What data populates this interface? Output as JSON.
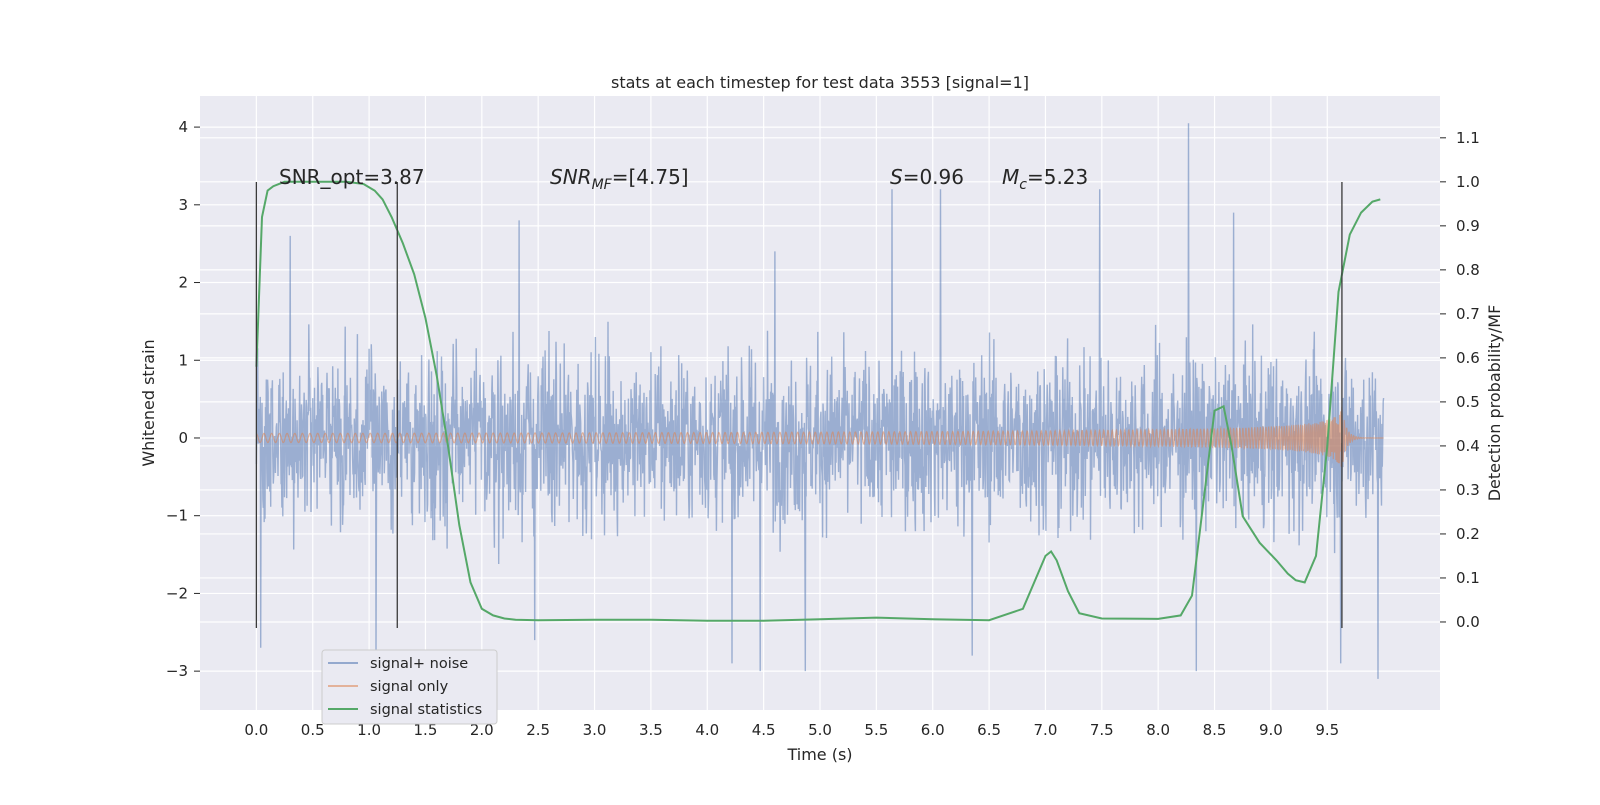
{
  "chart_data": {
    "type": "line",
    "title": "stats at each timestep for test data 3553 [signal=1]",
    "xlabel": "Time (s)",
    "ylabel_left": "Whitened strain",
    "ylabel_right": "Detection probability/MF",
    "xlim": [
      -0.5,
      10.5
    ],
    "ylim_left": [
      -3.5,
      4.4
    ],
    "ylim_right": [
      -0.2,
      1.195
    ],
    "xticks": [
      "0.0",
      "0.5",
      "1.0",
      "1.5",
      "2.0",
      "2.5",
      "3.0",
      "3.5",
      "4.0",
      "4.5",
      "5.0",
      "5.5",
      "6.0",
      "6.5",
      "7.0",
      "7.5",
      "8.0",
      "8.5",
      "9.0",
      "9.5"
    ],
    "yticks_left": [
      "−3",
      "−2",
      "−1",
      "0",
      "1",
      "2",
      "3",
      "4"
    ],
    "yticks_right": [
      "0.0",
      "0.1",
      "0.2",
      "0.3",
      "0.4",
      "0.5",
      "0.6",
      "0.7",
      "0.8",
      "0.9",
      "1.0",
      "1.1"
    ],
    "grid": true,
    "legend_position": "lower-left",
    "annotations": [
      {
        "text": "SNR_opt=3.87",
        "x": 0.2
      },
      {
        "text": "SNR_MF=[4.75]",
        "x": 2.6
      },
      {
        "text": "S=0.96",
        "x": 5.6
      },
      {
        "text": "M_c=5.23",
        "x": 6.6
      }
    ],
    "vertical_markers_s": [
      0.0,
      1.25,
      9.63
    ],
    "series": [
      {
        "name": "signal+ noise",
        "axis": "left",
        "color": "#4c72b0",
        "description": "whitened strain time series, noise dominated, roughly within ±1.7 with spikes to about ±3",
        "x_range": [
          0.0,
          10.0
        ],
        "envelope_typical": 1.6,
        "spikes": [
          [
            0.04,
            -2.7
          ],
          [
            0.3,
            2.6
          ],
          [
            1.06,
            -2.8
          ],
          [
            2.33,
            2.8
          ],
          [
            2.47,
            -2.6
          ],
          [
            4.22,
            -2.9
          ],
          [
            4.47,
            -3.0
          ],
          [
            4.6,
            2.4
          ],
          [
            4.87,
            -3.0
          ],
          [
            5.64,
            3.2
          ],
          [
            6.07,
            3.2
          ],
          [
            6.35,
            -2.8
          ],
          [
            7.48,
            3.2
          ],
          [
            8.27,
            4.05
          ],
          [
            8.34,
            -3.0
          ],
          [
            8.67,
            2.9
          ],
          [
            9.62,
            -2.9
          ],
          [
            9.95,
            -3.1
          ]
        ]
      },
      {
        "name": "signal only",
        "axis": "left",
        "color": "#dd8452",
        "description": "chirp signal growing in amplitude, merger near 9.63 s",
        "x_range": [
          0.0,
          10.0
        ],
        "merger_time": 9.63,
        "peak_amplitude": 0.4
      },
      {
        "name": "signal statistics",
        "axis": "right",
        "color": "#55a868",
        "x": [
          0.0,
          0.05,
          0.1,
          0.15,
          0.25,
          0.4,
          0.6,
          0.8,
          0.95,
          1.05,
          1.12,
          1.2,
          1.3,
          1.4,
          1.5,
          1.6,
          1.7,
          1.8,
          1.9,
          2.0,
          2.1,
          2.2,
          2.3,
          2.5,
          3.0,
          3.5,
          4.0,
          4.5,
          5.0,
          5.5,
          6.0,
          6.5,
          6.8,
          6.9,
          7.0,
          7.05,
          7.1,
          7.2,
          7.3,
          7.5,
          8.0,
          8.2,
          8.3,
          8.4,
          8.5,
          8.58,
          8.65,
          8.75,
          8.9,
          9.05,
          9.15,
          9.22,
          9.3,
          9.4,
          9.5,
          9.6,
          9.7,
          9.8,
          9.9,
          9.97
        ],
        "values": [
          0.58,
          0.92,
          0.98,
          0.99,
          1.0,
          1.0,
          1.0,
          1.0,
          0.995,
          0.98,
          0.96,
          0.92,
          0.86,
          0.79,
          0.69,
          0.56,
          0.4,
          0.22,
          0.09,
          0.03,
          0.015,
          0.008,
          0.005,
          0.004,
          0.005,
          0.005,
          0.003,
          0.003,
          0.006,
          0.01,
          0.006,
          0.004,
          0.03,
          0.09,
          0.15,
          0.16,
          0.14,
          0.07,
          0.02,
          0.008,
          0.007,
          0.015,
          0.06,
          0.27,
          0.48,
          0.49,
          0.4,
          0.24,
          0.18,
          0.14,
          0.11,
          0.095,
          0.09,
          0.15,
          0.4,
          0.75,
          0.88,
          0.93,
          0.955,
          0.96
        ]
      }
    ]
  }
}
